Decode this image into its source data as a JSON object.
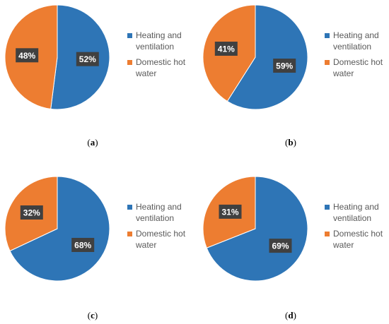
{
  "colors": {
    "heating": "#2E75B6",
    "dhw": "#ED7D31",
    "label_bg": "#404040",
    "label_text": "#FFFFFF",
    "legend_text": "#595959"
  },
  "chart_data": [
    {
      "type": "pie",
      "caption": "(a)",
      "categories": [
        "Heating and ventilation",
        "Domestic hot water"
      ],
      "values": [
        52,
        48
      ],
      "data_labels": [
        "52%",
        "48%"
      ],
      "legend": [
        [
          "Heating and",
          "ventilation"
        ],
        [
          "Domestic hot",
          "water"
        ]
      ],
      "legend_position": "right"
    },
    {
      "type": "pie",
      "caption": "(b)",
      "categories": [
        "Heating and ventilation",
        "Domestic hot water"
      ],
      "values": [
        59,
        41
      ],
      "data_labels": [
        "59%",
        "41%"
      ],
      "legend": [
        [
          "Heating and",
          "ventilation"
        ],
        [
          "Domestic hot",
          "water"
        ]
      ],
      "legend_position": "right"
    },
    {
      "type": "pie",
      "caption": "(c)",
      "categories": [
        "Heating and ventilation",
        "Domestic hot water"
      ],
      "values": [
        68,
        32
      ],
      "data_labels": [
        "68%",
        "32%"
      ],
      "legend": [
        [
          "Heating and",
          "ventilation"
        ],
        [
          "Domestic hot",
          "water"
        ]
      ],
      "legend_position": "right"
    },
    {
      "type": "pie",
      "caption": "(d)",
      "categories": [
        "Heating and ventilation",
        "Domestic hot water"
      ],
      "values": [
        69,
        31
      ],
      "data_labels": [
        "69%",
        "31%"
      ],
      "legend": [
        [
          "Heating and",
          "ventilation"
        ],
        [
          "Domestic hot",
          "water"
        ]
      ],
      "legend_position": "right"
    }
  ]
}
